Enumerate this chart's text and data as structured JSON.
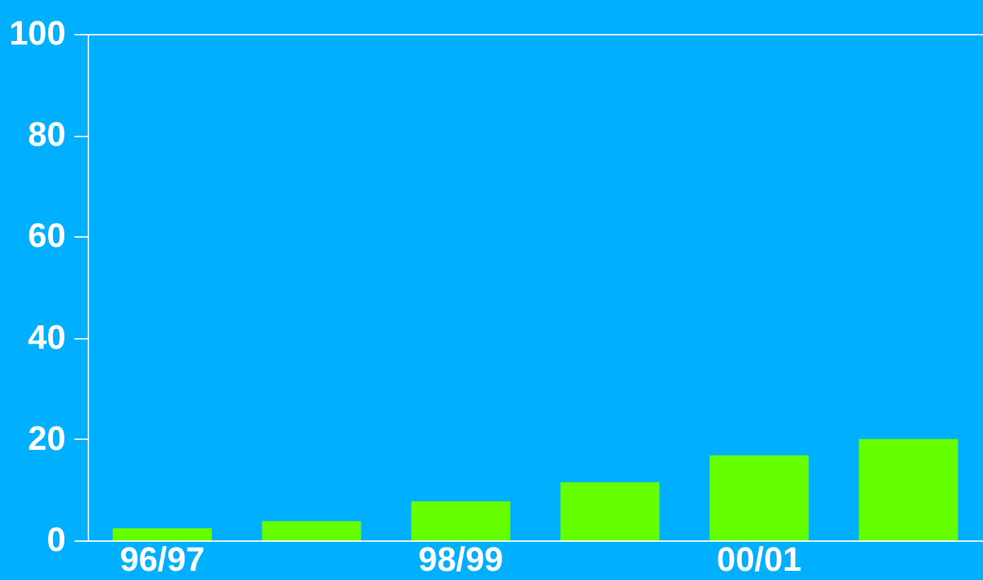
{
  "chart_data": {
    "type": "bar",
    "categories": [
      "96/97",
      null,
      "98/99",
      null,
      "00/01",
      null
    ],
    "values": [
      2.4,
      3.8,
      7.7,
      11.5,
      16.8,
      20.0
    ],
    "color": "#66ff00",
    "ylim": [
      0,
      100
    ],
    "yticks": [
      0,
      20,
      40,
      60,
      80,
      100
    ],
    "grid": false
  }
}
